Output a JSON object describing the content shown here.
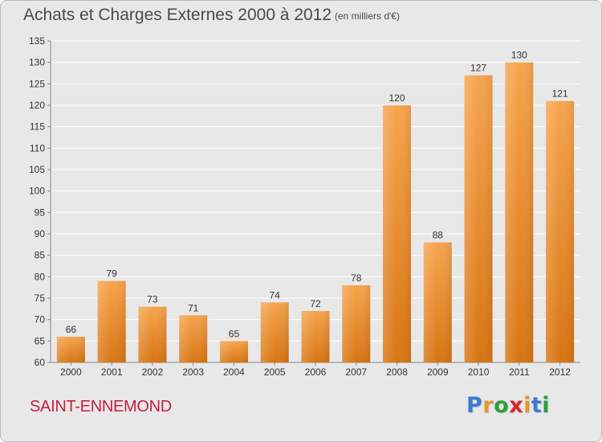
{
  "header": {
    "title": "Achats et Charges Externes 2000 à 2012",
    "unit": "(en milliers d'€)"
  },
  "footer": {
    "commune": "SAINT-ENNEMOND",
    "brand_letters": [
      "P",
      "r",
      "o",
      "x",
      "i",
      "t",
      "i"
    ]
  },
  "colors": {
    "bar_light": "#f7a44e",
    "bar_dark": "#d87512",
    "grid": "#ffffff",
    "text": "#333333",
    "brand": [
      "#3a7bd5",
      "#e8962a",
      "#2e9e3e",
      "#d8262e",
      "#e8962a",
      "#3a7bd5",
      "#2e9e3e"
    ]
  },
  "chart_data": {
    "type": "bar",
    "title": "Achats et Charges Externes 2000 à 2012",
    "subtitle": "(en milliers d'€)",
    "categories": [
      "2000",
      "2001",
      "2002",
      "2003",
      "2004",
      "2005",
      "2006",
      "2007",
      "2008",
      "2009",
      "2010",
      "2011",
      "2012"
    ],
    "values": [
      66,
      79,
      73,
      71,
      65,
      74,
      72,
      78,
      120,
      88,
      127,
      130,
      121
    ],
    "ylim": [
      60,
      135
    ],
    "yticks": [
      60,
      65,
      70,
      75,
      80,
      85,
      90,
      95,
      100,
      105,
      110,
      115,
      120,
      125,
      130,
      135
    ],
    "grid": true,
    "data_labels": true
  }
}
